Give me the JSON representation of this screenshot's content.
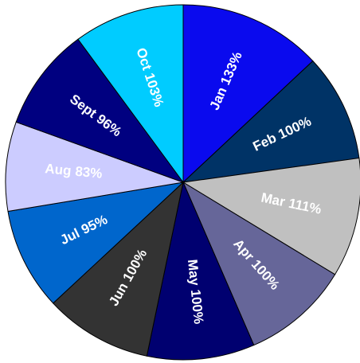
{
  "chart_data": {
    "type": "pie",
    "categories": [
      "Jan",
      "Feb",
      "Mar",
      "Apr",
      "May",
      "Jun",
      "Jul",
      "Aug",
      "Sept",
      "Oct"
    ],
    "values": [
      133,
      100,
      111,
      100,
      100,
      100,
      95,
      83,
      96,
      103
    ],
    "value_labels": [
      "133%",
      "100%",
      "111%",
      "100%",
      "100%",
      "100%",
      "95%",
      "83%",
      "96%",
      "103%"
    ],
    "colors": [
      "#0a0aee",
      "#003366",
      "#c0c0c0",
      "#666699",
      "#000070",
      "#333333",
      "#0066cc",
      "#ccccff",
      "#000080",
      "#00ccff"
    ]
  }
}
